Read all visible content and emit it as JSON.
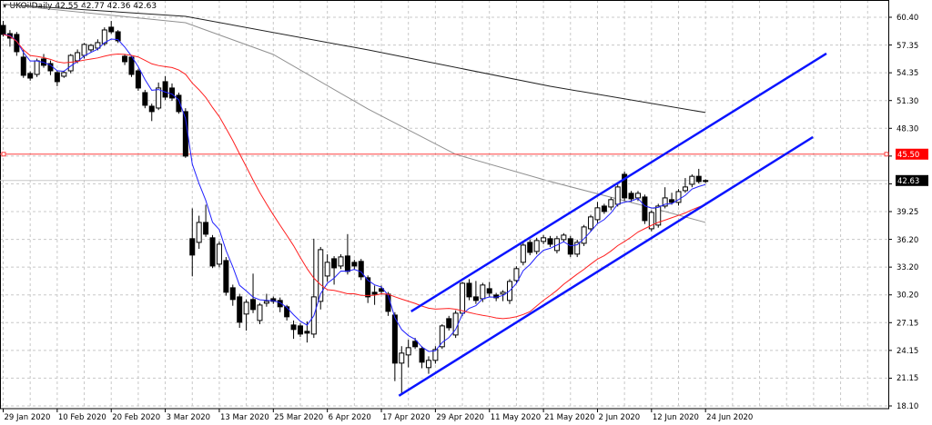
{
  "header": {
    "symbol": "UKOil",
    "timeframe": "Daily",
    "ohlc_text": "42.55 42.77 42.36 42.63",
    "menu_icon": "triangle-down-icon"
  },
  "colors": {
    "ma_fast": "#2020ff",
    "ma_mid": "#ff2020",
    "ma_100": "#909090",
    "ma_200": "#202020",
    "channel": "#0a14ff",
    "level": "#ff4040",
    "bull": "#ffffff",
    "bear": "#000000",
    "grid": "#c8c8c8"
  },
  "chart_data": {
    "type": "candlestick",
    "title": "UKOil,Daily",
    "price_ticks": [
      "60.40",
      "57.35",
      "54.35",
      "51.30",
      "48.30",
      "39.25",
      "36.20",
      "33.20",
      "30.20",
      "27.15",
      "24.15",
      "21.15",
      "18.10"
    ],
    "ylim": [
      18.1,
      60.4
    ],
    "date_labels": [
      {
        "index": 0,
        "label": "29 Jan 2020"
      },
      {
        "index": 8,
        "label": "10 Feb 2020"
      },
      {
        "index": 16,
        "label": "20 Feb 2020"
      },
      {
        "index": 24,
        "label": "3 Mar 2020"
      },
      {
        "index": 32,
        "label": "13 Mar 2020"
      },
      {
        "index": 40,
        "label": "25 Mar 2020"
      },
      {
        "index": 48,
        "label": "6 Apr 2020"
      },
      {
        "index": 56,
        "label": "17 Apr 2020"
      },
      {
        "index": 64,
        "label": "29 Apr 2020"
      },
      {
        "index": 72,
        "label": "11 May 2020"
      },
      {
        "index": 80,
        "label": "21 May 2020"
      },
      {
        "index": 88,
        "label": "2 Jun 2020"
      },
      {
        "index": 96,
        "label": "12 Jun 2020"
      },
      {
        "index": 104,
        "label": "24 Jun 2020"
      }
    ],
    "ohlc": [
      [
        59.51,
        60.0,
        58.3,
        58.53
      ],
      [
        58.62,
        59.0,
        57.2,
        58.13
      ],
      [
        58.53,
        58.8,
        56.2,
        56.65
      ],
      [
        56.06,
        56.9,
        53.8,
        54.08
      ],
      [
        54.28,
        54.5,
        53.5,
        53.78
      ],
      [
        54.18,
        55.9,
        53.9,
        55.66
      ],
      [
        55.86,
        56.4,
        54.9,
        55.17
      ],
      [
        55.36,
        55.7,
        54.1,
        54.57
      ],
      [
        54.38,
        54.6,
        52.9,
        53.39
      ],
      [
        53.98,
        54.6,
        53.8,
        54.38
      ],
      [
        54.57,
        56.4,
        54.3,
        56.25
      ],
      [
        55.66,
        56.9,
        55.4,
        56.55
      ],
      [
        56.25,
        57.6,
        55.9,
        57.44
      ],
      [
        56.85,
        57.5,
        56.6,
        57.34
      ],
      [
        57.04,
        58.0,
        56.8,
        57.64
      ],
      [
        57.54,
        59.3,
        57.3,
        59.02
      ],
      [
        59.32,
        60.0,
        58.6,
        58.82
      ],
      [
        58.82,
        59.0,
        57.6,
        57.84
      ],
      [
        56.15,
        56.4,
        55.2,
        55.56
      ],
      [
        56.06,
        56.3,
        53.9,
        54.18
      ],
      [
        54.57,
        54.8,
        52.4,
        52.7
      ],
      [
        52.2,
        52.5,
        50.5,
        50.82
      ],
      [
        50.72,
        51.0,
        49.1,
        50.13
      ],
      [
        50.52,
        53.3,
        50.3,
        52.7
      ],
      [
        53.39,
        54.0,
        51.4,
        51.71
      ],
      [
        52.7,
        53.2,
        51.3,
        51.61
      ],
      [
        51.91,
        52.2,
        49.9,
        50.13
      ],
      [
        50.13,
        50.5,
        45.1,
        45.29
      ],
      [
        36.3,
        39.6,
        32.2,
        34.52
      ],
      [
        35.9,
        38.8,
        35.2,
        38.07
      ],
      [
        38.07,
        40.0,
        36.5,
        36.79
      ],
      [
        36.4,
        36.7,
        33.1,
        33.33
      ],
      [
        33.53,
        36.0,
        33.2,
        35.7
      ],
      [
        33.92,
        34.3,
        30.1,
        30.47
      ],
      [
        30.96,
        31.3,
        29.0,
        29.68
      ],
      [
        29.97,
        30.3,
        26.6,
        27.21
      ],
      [
        28.1,
        29.7,
        26.3,
        29.38
      ],
      [
        29.68,
        32.5,
        28.2,
        28.59
      ],
      [
        27.4,
        29.3,
        27.0,
        29.08
      ],
      [
        29.28,
        30.3,
        28.9,
        29.48
      ],
      [
        29.77,
        30.0,
        29.2,
        29.48
      ],
      [
        29.58,
        29.9,
        28.3,
        28.89
      ],
      [
        28.89,
        29.1,
        27.4,
        27.8
      ],
      [
        26.91,
        27.4,
        25.4,
        26.42
      ],
      [
        26.81,
        27.1,
        25.6,
        25.92
      ],
      [
        26.22,
        27.3,
        25.0,
        26.02
      ],
      [
        25.92,
        36.3,
        25.5,
        29.97
      ],
      [
        29.48,
        35.4,
        28.6,
        35.11
      ],
      [
        32.24,
        34.6,
        31.6,
        33.73
      ],
      [
        34.12,
        34.4,
        31.3,
        33.13
      ],
      [
        33.33,
        34.6,
        33.0,
        34.32
      ],
      [
        34.42,
        36.8,
        32.4,
        32.74
      ],
      [
        33.73,
        34.0,
        32.9,
        33.33
      ],
      [
        33.83,
        34.1,
        31.8,
        32.15
      ],
      [
        32.05,
        32.3,
        29.3,
        29.97
      ],
      [
        30.47,
        31.2,
        29.1,
        30.27
      ],
      [
        30.86,
        31.2,
        30.2,
        30.57
      ],
      [
        30.27,
        30.5,
        27.9,
        28.39
      ],
      [
        27.99,
        28.3,
        20.8,
        22.76
      ],
      [
        22.76,
        24.6,
        19.3,
        23.85
      ],
      [
        23.65,
        25.3,
        22.3,
        24.44
      ],
      [
        25.13,
        25.5,
        24.3,
        24.54
      ],
      [
        24.34,
        24.6,
        22.2,
        22.86
      ],
      [
        22.27,
        23.5,
        21.6,
        23.06
      ],
      [
        23.06,
        24.6,
        22.7,
        24.24
      ],
      [
        24.54,
        27.0,
        24.3,
        26.81
      ],
      [
        27.6,
        27.9,
        26.3,
        26.61
      ],
      [
        25.82,
        28.5,
        25.5,
        28.19
      ],
      [
        28.19,
        31.6,
        27.9,
        31.45
      ],
      [
        31.45,
        31.9,
        29.6,
        29.97
      ],
      [
        29.97,
        31.7,
        29.2,
        29.58
      ],
      [
        29.77,
        31.5,
        29.4,
        31.26
      ],
      [
        30.86,
        31.6,
        30.0,
        30.37
      ],
      [
        30.17,
        30.4,
        29.5,
        29.87
      ],
      [
        30.27,
        30.7,
        29.5,
        30.47
      ],
      [
        29.58,
        31.9,
        29.2,
        31.65
      ],
      [
        31.75,
        33.3,
        31.5,
        33.04
      ],
      [
        33.73,
        36.0,
        33.4,
        35.6
      ],
      [
        35.9,
        36.2,
        34.5,
        34.81
      ],
      [
        34.91,
        36.4,
        34.6,
        36.1
      ],
      [
        36.0,
        36.7,
        35.7,
        36.4
      ],
      [
        36.3,
        36.6,
        35.4,
        35.7
      ],
      [
        35.01,
        36.6,
        34.7,
        36.3
      ],
      [
        36.2,
        36.9,
        35.9,
        36.69
      ],
      [
        36.3,
        36.6,
        34.3,
        34.62
      ],
      [
        34.62,
        36.2,
        34.3,
        35.9
      ],
      [
        35.8,
        37.8,
        35.5,
        37.58
      ],
      [
        37.38,
        38.9,
        37.1,
        38.67
      ],
      [
        38.37,
        40.3,
        38.0,
        39.66
      ],
      [
        39.85,
        40.1,
        39.0,
        39.26
      ],
      [
        39.75,
        40.8,
        39.4,
        40.55
      ],
      [
        40.05,
        42.2,
        39.8,
        41.93
      ],
      [
        43.31,
        43.6,
        40.4,
        40.74
      ],
      [
        41.24,
        41.5,
        40.3,
        40.64
      ],
      [
        40.74,
        41.5,
        40.4,
        41.24
      ],
      [
        40.84,
        41.1,
        37.9,
        38.27
      ],
      [
        37.38,
        39.4,
        37.1,
        39.16
      ],
      [
        37.78,
        40.1,
        37.5,
        39.85
      ],
      [
        39.85,
        41.9,
        39.6,
        40.74
      ],
      [
        40.55,
        41.3,
        40.0,
        40.25
      ],
      [
        40.25,
        41.7,
        39.9,
        41.43
      ],
      [
        41.53,
        42.9,
        41.3,
        41.93
      ],
      [
        42.22,
        43.3,
        41.9,
        43.09
      ],
      [
        43.09,
        43.9,
        42.3,
        42.52
      ],
      [
        42.55,
        42.77,
        42.36,
        42.63
      ]
    ],
    "moving_averages": [
      {
        "kind": "ema",
        "period": 5,
        "color_key": "ma_fast"
      },
      {
        "kind": "sma",
        "period": 21,
        "color_key": "ma_mid"
      }
    ],
    "ma_100_points": [
      [
        0,
        61.79
      ],
      [
        27,
        59.81
      ],
      [
        40,
        56.35
      ],
      [
        54,
        50.42
      ],
      [
        67,
        45.48
      ],
      [
        81,
        42.52
      ],
      [
        94,
        40.05
      ],
      [
        104,
        38.07
      ]
    ],
    "ma_200_points": [
      [
        0,
        61.79
      ],
      [
        27,
        60.5
      ],
      [
        54,
        56.85
      ],
      [
        81,
        52.89
      ],
      [
        104,
        50.03
      ]
    ],
    "channel_lines": [
      {
        "name": "upper",
        "from": [
          60.4,
          28.39
        ],
        "to": [
          121.9,
          56.45
        ]
      },
      {
        "name": "lower",
        "from": [
          58.6,
          19.2
        ],
        "to": [
          119.9,
          47.36
        ]
      }
    ],
    "horizontal_levels": [
      {
        "price": "45.50",
        "color_key": "level",
        "badge_bg": "#ff0000"
      },
      {
        "price": "42.63",
        "color_key": "grid",
        "badge_bg": "#000000"
      }
    ]
  }
}
